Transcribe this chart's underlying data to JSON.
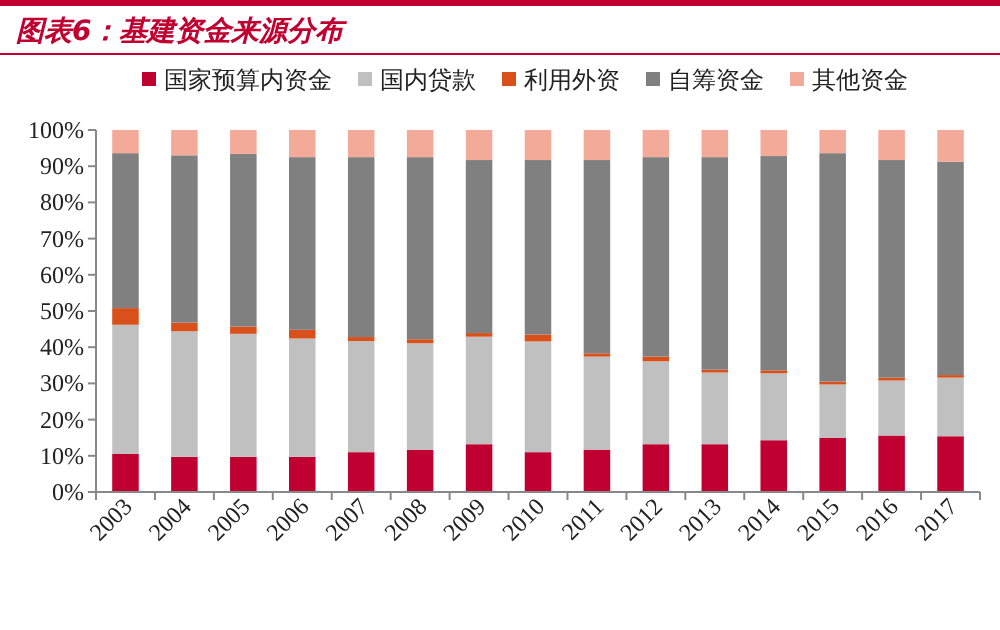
{
  "chart_data": {
    "type": "bar",
    "stacked": true,
    "title": "图表6：基建资金来源分布",
    "legend": "top",
    "grid": false,
    "categories": [
      "2003",
      "2004",
      "2005",
      "2006",
      "2007",
      "2008",
      "2009",
      "2010",
      "2011",
      "2012",
      "2013",
      "2014",
      "2015",
      "2016",
      "2017"
    ],
    "ylim": [
      0,
      100
    ],
    "yticks": [
      {
        "value": 0,
        "label": "0%"
      },
      {
        "value": 10,
        "label": "10%"
      },
      {
        "value": 20,
        "label": "20%"
      },
      {
        "value": 30,
        "label": "30%"
      },
      {
        "value": 40,
        "label": "40%"
      },
      {
        "value": 50,
        "label": "50%"
      },
      {
        "value": 60,
        "label": "60%"
      },
      {
        "value": 70,
        "label": "70%"
      },
      {
        "value": 80,
        "label": "80%"
      },
      {
        "value": 90,
        "label": "90%"
      },
      {
        "value": 100,
        "label": "100%"
      }
    ],
    "series": [
      {
        "name": "国家预算内资金",
        "color": "#c00030",
        "values": [
          10.5,
          9.7,
          9.7,
          9.7,
          11.0,
          11.6,
          13.2,
          11.0,
          11.7,
          13.2,
          13.2,
          14.3,
          15.0,
          15.6,
          15.4
        ]
      },
      {
        "name": "国内贷款",
        "color": "#c0c0c0",
        "values": [
          35.7,
          34.7,
          34.0,
          32.7,
          30.7,
          29.5,
          29.7,
          30.6,
          25.7,
          22.9,
          19.8,
          18.5,
          14.7,
          15.2,
          16.2
        ]
      },
      {
        "name": "利用外资",
        "color": "#d9501a",
        "values": [
          4.6,
          2.4,
          2.0,
          2.4,
          1.1,
          1.1,
          1.0,
          1.9,
          0.9,
          1.3,
          0.8,
          0.8,
          0.8,
          0.8,
          0.7
        ]
      },
      {
        "name": "自筹资金",
        "color": "#808080",
        "values": [
          42.8,
          46.2,
          47.7,
          47.7,
          49.7,
          50.3,
          47.8,
          48.2,
          53.4,
          55.1,
          58.7,
          59.2,
          63.1,
          60.1,
          58.9
        ]
      },
      {
        "name": "其他资金",
        "color": "#f4aa98",
        "values": [
          6.4,
          7.0,
          6.6,
          7.5,
          7.5,
          7.5,
          8.3,
          8.3,
          8.3,
          7.5,
          7.5,
          7.2,
          6.4,
          8.3,
          8.8
        ]
      }
    ]
  }
}
